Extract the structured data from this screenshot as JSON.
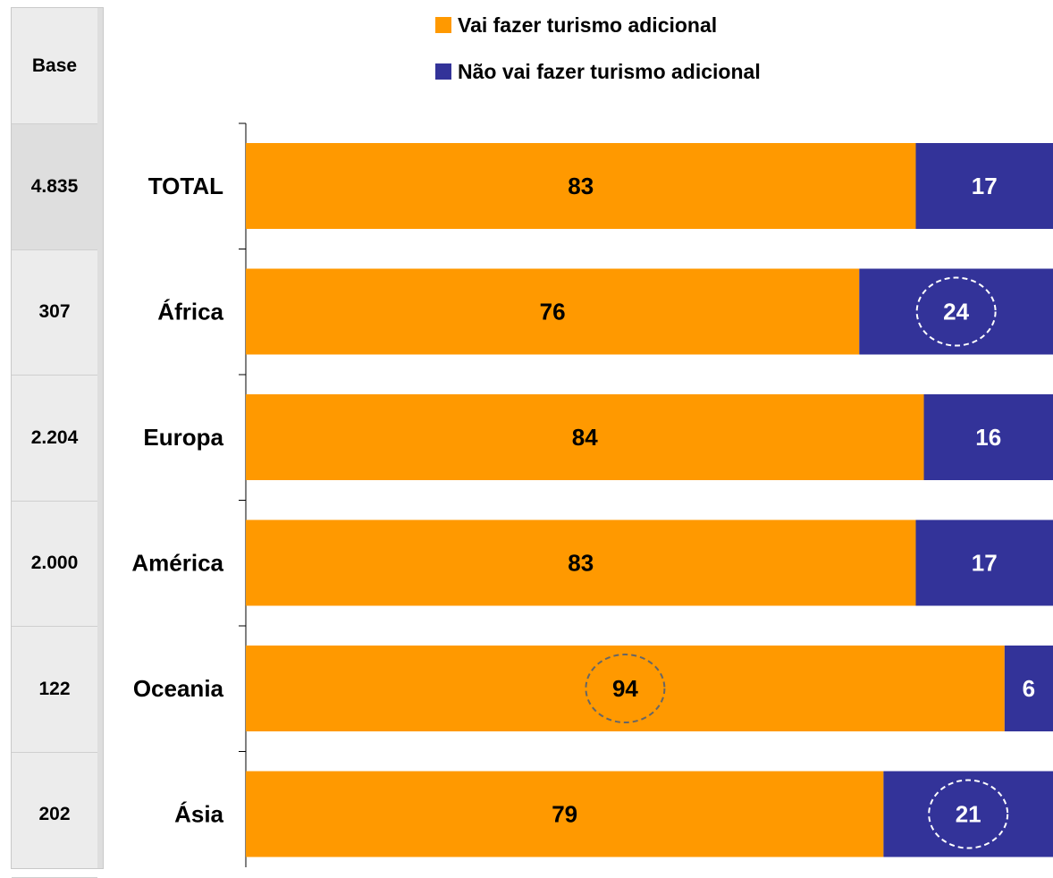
{
  "base_header": "Base",
  "bases": [
    "4.835",
    "307",
    "2.204",
    "2.000",
    "122",
    "202"
  ],
  "colors": {
    "vai": "#FF9900",
    "nao": "#333399",
    "base_bg": "#ececec"
  },
  "chart_data": {
    "type": "bar",
    "orientation": "horizontal",
    "stacked": true,
    "percent_stacked": true,
    "categories": [
      "TOTAL",
      "África",
      "Europa",
      "América",
      "Oceania",
      "Ásia"
    ],
    "series": [
      {
        "name": "Vai fazer turismo adicional",
        "values": [
          83,
          76,
          84,
          83,
          94,
          79
        ]
      },
      {
        "name": "Não vai fazer turismo adicional",
        "values": [
          17,
          24,
          16,
          17,
          6,
          21
        ]
      }
    ],
    "highlighted": [
      {
        "series": 1,
        "category": "África"
      },
      {
        "series": 0,
        "category": "Oceania"
      },
      {
        "series": 1,
        "category": "Ásia"
      }
    ],
    "xlim": [
      0,
      100
    ],
    "legend_position": "top"
  }
}
